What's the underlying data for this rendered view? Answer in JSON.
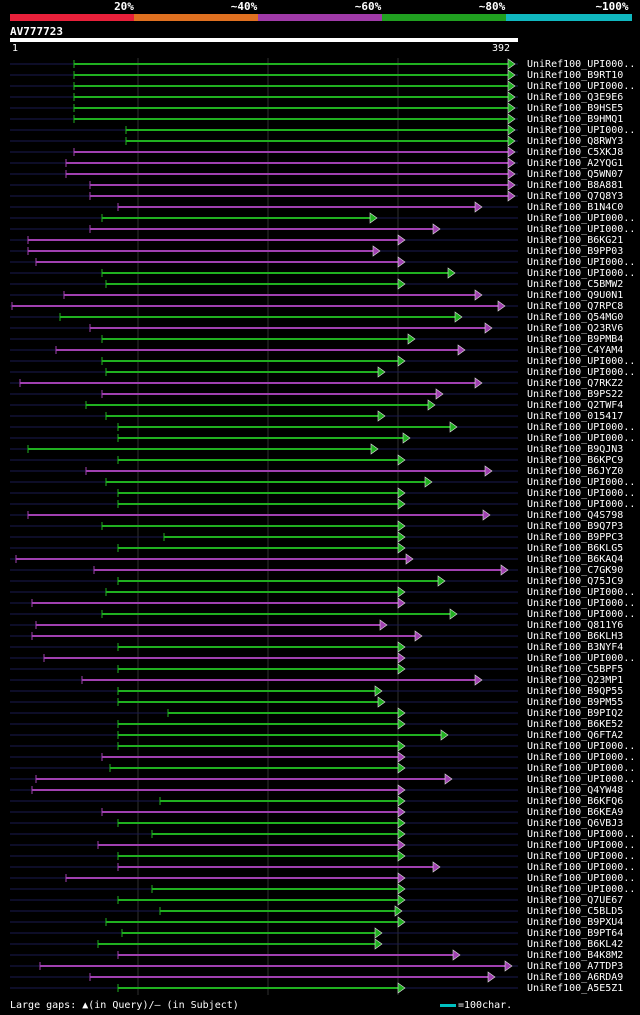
{
  "legend": {
    "labels": [
      "20%",
      "~40%",
      "~60%",
      "~80%",
      "~100%"
    ],
    "colors": [
      "#e8203a",
      "#e07020",
      "#a03aa8",
      "#20a020",
      "#10b8c0"
    ]
  },
  "query": {
    "id": "AV777723",
    "start": "1",
    "end": "392"
  },
  "footer": {
    "gaps_note": "Large gaps: ▲(in Query)/— (in Subject)",
    "scale_note": "=100char."
  },
  "hits": [
    {
      "label": "UniRef100_UPI000..",
      "s": 74,
      "e": 515,
      "c": "#20b020"
    },
    {
      "label": "UniRef100_B9RT10",
      "s": 74,
      "e": 515,
      "c": "#20b020"
    },
    {
      "label": "UniRef100_UPI000..",
      "s": 74,
      "e": 515,
      "c": "#20b020"
    },
    {
      "label": "UniRef100_Q3E9E6",
      "s": 74,
      "e": 515,
      "c": "#20b020"
    },
    {
      "label": "UniRef100_B9HSE5",
      "s": 74,
      "e": 515,
      "c": "#20b020"
    },
    {
      "label": "UniRef100_B9HMQ1",
      "s": 74,
      "e": 515,
      "c": "#20b020"
    },
    {
      "label": "UniRef100_UPI000..",
      "s": 126,
      "e": 515,
      "c": "#20b020"
    },
    {
      "label": "UniRef100_Q8RWY3",
      "s": 126,
      "e": 515,
      "c": "#20b020"
    },
    {
      "label": "UniRef100_C5XKJ8",
      "s": 74,
      "e": 515,
      "c": "#a040b0"
    },
    {
      "label": "UniRef100_A2YQG1",
      "s": 66,
      "e": 515,
      "c": "#a040b0"
    },
    {
      "label": "UniRef100_Q5WN07",
      "s": 66,
      "e": 515,
      "c": "#a040b0"
    },
    {
      "label": "UniRef100_B8A881",
      "s": 90,
      "e": 515,
      "c": "#a040b0"
    },
    {
      "label": "UniRef100_Q7Q8Y3",
      "s": 90,
      "e": 515,
      "c": "#a040b0"
    },
    {
      "label": "UniRef100_B1N4C0",
      "s": 118,
      "e": 482,
      "c": "#a040b0"
    },
    {
      "label": "UniRef100_UPI000..",
      "s": 102,
      "e": 377,
      "c": "#20b020"
    },
    {
      "label": "UniRef100_UPI000..",
      "s": 90,
      "e": 440,
      "c": "#a040b0"
    },
    {
      "label": "UniRef100_B6KG21",
      "s": 28,
      "e": 405,
      "c": "#a040b0"
    },
    {
      "label": "UniRef100_B9PP03",
      "s": 28,
      "e": 380,
      "c": "#a040b0"
    },
    {
      "label": "UniRef100_UPI000..",
      "s": 36,
      "e": 405,
      "c": "#a040b0"
    },
    {
      "label": "UniRef100_UPI000..",
      "s": 102,
      "e": 455,
      "c": "#20b020"
    },
    {
      "label": "UniRef100_C5BMW2",
      "s": 106,
      "e": 405,
      "c": "#20b020"
    },
    {
      "label": "UniRef100_Q9U0N1",
      "s": 64,
      "e": 482,
      "c": "#a040b0"
    },
    {
      "label": "UniRef100_Q7RPC8",
      "s": 12,
      "e": 505,
      "c": "#a040b0"
    },
    {
      "label": "UniRef100_Q54MG0",
      "s": 60,
      "e": 462,
      "c": "#20b020"
    },
    {
      "label": "UniRef100_Q23RV6",
      "s": 90,
      "e": 492,
      "c": "#a040b0"
    },
    {
      "label": "UniRef100_B9PMB4",
      "s": 102,
      "e": 415,
      "c": "#20b020"
    },
    {
      "label": "UniRef100_C4YAM4",
      "s": 56,
      "e": 465,
      "c": "#a040b0"
    },
    {
      "label": "UniRef100_UPI000..",
      "s": 102,
      "e": 405,
      "c": "#20b020"
    },
    {
      "label": "UniRef100_UPI000..",
      "s": 106,
      "e": 385,
      "c": "#20b020"
    },
    {
      "label": "UniRef100_Q7RKZ2",
      "s": 20,
      "e": 482,
      "c": "#a040b0"
    },
    {
      "label": "UniRef100_B9PS22",
      "s": 102,
      "e": 443,
      "c": "#a040b0"
    },
    {
      "label": "UniRef100_Q2TWF4",
      "s": 86,
      "e": 435,
      "c": "#20b020"
    },
    {
      "label": "UniRef100_015417",
      "s": 106,
      "e": 385,
      "c": "#20b020"
    },
    {
      "label": "UniRef100_UPI000..",
      "s": 118,
      "e": 457,
      "c": "#20b020"
    },
    {
      "label": "UniRef100_UPI000..",
      "s": 118,
      "e": 410,
      "c": "#20b020"
    },
    {
      "label": "UniRef100_B9QJN3",
      "s": 28,
      "e": 378,
      "c": "#20b020"
    },
    {
      "label": "UniRef100_B6KPC9",
      "s": 118,
      "e": 405,
      "c": "#20b020"
    },
    {
      "label": "UniRef100_B6JYZ0",
      "s": 86,
      "e": 492,
      "c": "#a040b0"
    },
    {
      "label": "UniRef100_UPI000..",
      "s": 106,
      "e": 432,
      "c": "#20b020"
    },
    {
      "label": "UniRef100_UPI000..",
      "s": 118,
      "e": 405,
      "c": "#20b020"
    },
    {
      "label": "UniRef100_UPI000..",
      "s": 118,
      "e": 405,
      "c": "#20b020"
    },
    {
      "label": "UniRef100_Q4S798",
      "s": 28,
      "e": 490,
      "c": "#a040b0"
    },
    {
      "label": "UniRef100_B9Q7P3",
      "s": 102,
      "e": 405,
      "c": "#20b020"
    },
    {
      "label": "UniRef100_B9PPC3",
      "s": 164,
      "e": 405,
      "c": "#20b020"
    },
    {
      "label": "UniRef100_B6KLG5",
      "s": 118,
      "e": 405,
      "c": "#20b020"
    },
    {
      "label": "UniRef100_B6KAQ4",
      "s": 16,
      "e": 413,
      "c": "#a040b0"
    },
    {
      "label": "UniRef100_C7GK90",
      "s": 94,
      "e": 508,
      "c": "#a040b0"
    },
    {
      "label": "UniRef100_Q75JC9",
      "s": 118,
      "e": 445,
      "c": "#20b020"
    },
    {
      "label": "UniRef100_UPI000..",
      "s": 106,
      "e": 405,
      "c": "#20b020"
    },
    {
      "label": "UniRef100_UPI000..",
      "s": 32,
      "e": 405,
      "c": "#a040b0"
    },
    {
      "label": "UniRef100_UPI000..",
      "s": 102,
      "e": 457,
      "c": "#20b020"
    },
    {
      "label": "UniRef100_Q811Y6",
      "s": 36,
      "e": 387,
      "c": "#a040b0"
    },
    {
      "label": "UniRef100_B6KLH3",
      "s": 32,
      "e": 422,
      "c": "#a040b0"
    },
    {
      "label": "UniRef100_B3NYF4",
      "s": 118,
      "e": 405,
      "c": "#20b020"
    },
    {
      "label": "UniRef100_UPI000..",
      "s": 44,
      "e": 405,
      "c": "#a040b0"
    },
    {
      "label": "UniRef100_C5BPF5",
      "s": 118,
      "e": 405,
      "c": "#20b020"
    },
    {
      "label": "UniRef100_Q23MP1",
      "s": 82,
      "e": 482,
      "c": "#a040b0"
    },
    {
      "label": "UniRef100_B9QP55",
      "s": 118,
      "e": 382,
      "c": "#20b020"
    },
    {
      "label": "UniRef100_B9PM55",
      "s": 118,
      "e": 385,
      "c": "#20b020"
    },
    {
      "label": "UniRef100_B9PIQ2",
      "s": 168,
      "e": 405,
      "c": "#20b020"
    },
    {
      "label": "UniRef100_B6KE52",
      "s": 118,
      "e": 405,
      "c": "#20b020"
    },
    {
      "label": "UniRef100_Q6FTA2",
      "s": 118,
      "e": 448,
      "c": "#20b020"
    },
    {
      "label": "UniRef100_UPI000..",
      "s": 118,
      "e": 405,
      "c": "#20b020"
    },
    {
      "label": "UniRef100_UPI000..",
      "s": 102,
      "e": 405,
      "c": "#a040b0"
    },
    {
      "label": "UniRef100_UPI000..",
      "s": 110,
      "e": 405,
      "c": "#20b020"
    },
    {
      "label": "UniRef100_UPI000..",
      "s": 36,
      "e": 452,
      "c": "#a040b0"
    },
    {
      "label": "UniRef100_Q4YW48",
      "s": 32,
      "e": 405,
      "c": "#a040b0"
    },
    {
      "label": "UniRef100_B6KFQ6",
      "s": 160,
      "e": 405,
      "c": "#20b020"
    },
    {
      "label": "UniRef100_B6KEA9",
      "s": 102,
      "e": 405,
      "c": "#a040b0"
    },
    {
      "label": "UniRef100_Q6VBJ3",
      "s": 118,
      "e": 405,
      "c": "#20b020"
    },
    {
      "label": "UniRef100_UPI000..",
      "s": 152,
      "e": 405,
      "c": "#20b020"
    },
    {
      "label": "UniRef100_UPI000..",
      "s": 98,
      "e": 405,
      "c": "#a040b0"
    },
    {
      "label": "UniRef100_UPI000..",
      "s": 118,
      "e": 405,
      "c": "#20b020"
    },
    {
      "label": "UniRef100_UPI000..",
      "s": 118,
      "e": 440,
      "c": "#a040b0"
    },
    {
      "label": "UniRef100_UPI000..",
      "s": 66,
      "e": 405,
      "c": "#a040b0"
    },
    {
      "label": "UniRef100_UPI000..",
      "s": 152,
      "e": 405,
      "c": "#20b020"
    },
    {
      "label": "UniRef100_Q7UE67",
      "s": 118,
      "e": 405,
      "c": "#20b020"
    },
    {
      "label": "UniRef100_C5BLD5",
      "s": 160,
      "e": 402,
      "c": "#20b020"
    },
    {
      "label": "UniRef100_B9PXU4",
      "s": 106,
      "e": 405,
      "c": "#20b020"
    },
    {
      "label": "UniRef100_B9PT64",
      "s": 122,
      "e": 382,
      "c": "#20b020"
    },
    {
      "label": "UniRef100_B6KL42",
      "s": 98,
      "e": 382,
      "c": "#20b020"
    },
    {
      "label": "UniRef100_B4K8M2",
      "s": 118,
      "e": 460,
      "c": "#a040b0"
    },
    {
      "label": "UniRef100_A7TDP3",
      "s": 40,
      "e": 512,
      "c": "#a040b0"
    },
    {
      "label": "UniRef100_A6RDA9",
      "s": 90,
      "e": 495,
      "c": "#a040b0"
    },
    {
      "label": "UniRef100_A5E5Z1",
      "s": 118,
      "e": 405,
      "c": "#20b020"
    }
  ]
}
